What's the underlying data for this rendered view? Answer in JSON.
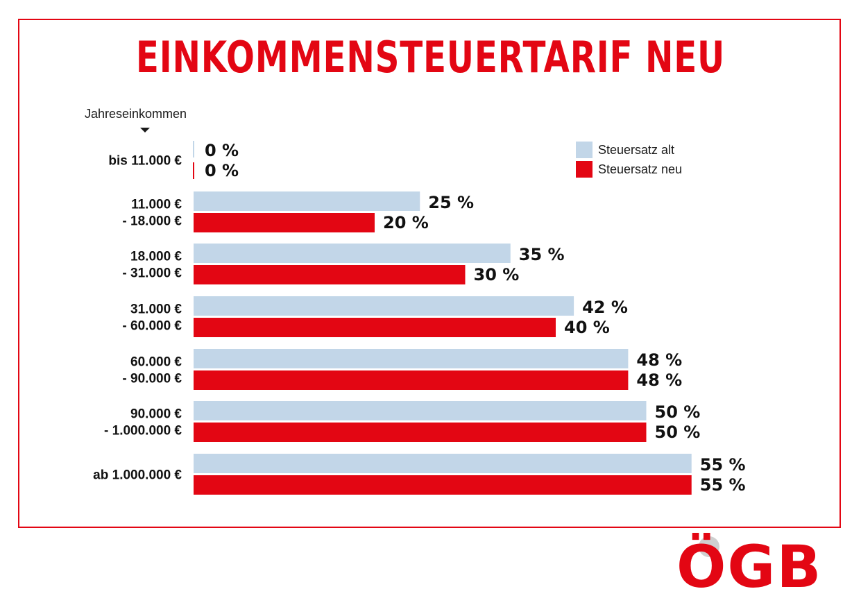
{
  "title": "EINKOMMENSTEUERTARIF NEU",
  "axis_title": "Jahreseinkommen",
  "logo_text": "ÖGB",
  "colors": {
    "old": "#c2d6e8",
    "new": "#e30613",
    "frame": "#e30613"
  },
  "legend": [
    {
      "label": "Steuersatz alt",
      "color": "#c2d6e8"
    },
    {
      "label": "Steuersatz neu",
      "color": "#e30613"
    }
  ],
  "chart_data": {
    "type": "bar",
    "orientation": "horizontal",
    "title": "EINKOMMENSTEUERTARIF NEU",
    "ylabel": "Jahreseinkommen",
    "categories": [
      [
        "bis 11.000 €"
      ],
      [
        "11.000 €",
        "- 18.000 €"
      ],
      [
        "18.000 €",
        "- 31.000 €"
      ],
      [
        "31.000 €",
        "- 60.000 €"
      ],
      [
        "60.000 €",
        "- 90.000 €"
      ],
      [
        "90.000 €",
        "- 1.000.000 €"
      ],
      [
        "ab 1.000.000 €"
      ]
    ],
    "series": [
      {
        "name": "Steuersatz alt",
        "values": [
          0,
          25,
          35,
          42,
          48,
          50,
          55
        ],
        "labels": [
          "0 %",
          "25 %",
          "35 %",
          "42 %",
          "48 %",
          "50 %",
          "55 %"
        ]
      },
      {
        "name": "Steuersatz neu",
        "values": [
          0,
          20,
          30,
          40,
          48,
          50,
          55
        ],
        "labels": [
          "0 %",
          "20 %",
          "30 %",
          "40 %",
          "48 %",
          "50 %",
          "55 %"
        ]
      }
    ],
    "xlim": [
      0,
      55
    ],
    "legend_position": "top-right",
    "grid": false
  }
}
